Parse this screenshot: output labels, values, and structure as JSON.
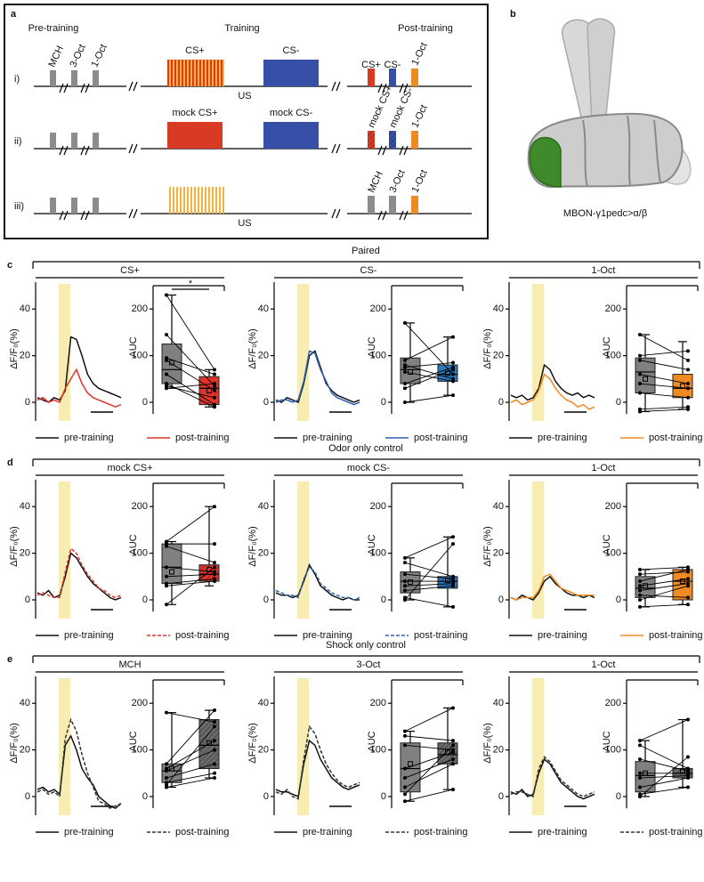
{
  "panel_a": {
    "label": "a",
    "headers": [
      "Pre-training",
      "Training",
      "Post-training"
    ],
    "rows": [
      {
        "roman": "i)",
        "pre_labels": [
          "MCH",
          "3-Oct",
          "1-Oct"
        ],
        "train_labels": [
          "CS+",
          "CS-"
        ],
        "us": "US",
        "post_labels": [
          "CS+",
          "CS-",
          "1-Oct"
        ]
      },
      {
        "roman": "ii)",
        "train_labels": [
          "mock CS+",
          "mock CS-"
        ],
        "post_labels": [
          "mock CS+",
          "mock CS-",
          "1-Oct"
        ]
      },
      {
        "roman": "iii)",
        "us": "US",
        "post_labels": [
          "MCH",
          "3-Oct",
          "1-Oct"
        ]
      }
    ]
  },
  "panel_b": {
    "label": "b",
    "caption": "MBON-γ1pedc>α/β"
  },
  "sections": [
    {
      "label": "c",
      "title": "Paired"
    },
    {
      "label": "d",
      "title": "Odor only control"
    },
    {
      "label": "e",
      "title": "Shock only control"
    }
  ],
  "chart_data": [
    {
      "type": "line",
      "title": "CS+",
      "ylabel": "ΔF/F₀(%)",
      "ylim": [
        -8,
        50
      ],
      "yticks": [
        0,
        20,
        40
      ],
      "series": [
        {
          "name": "pre-training",
          "color": "#111111",
          "values": [
            2,
            1,
            0,
            2,
            1,
            5,
            28,
            27,
            20,
            12,
            8,
            6,
            5,
            4,
            3,
            2
          ]
        },
        {
          "name": "post-training",
          "color": "#e0342b",
          "values": [
            1,
            2,
            0,
            1,
            0,
            6,
            10,
            14,
            8,
            4,
            2,
            1,
            0,
            -1,
            -2,
            -1
          ]
        }
      ]
    },
    {
      "type": "box",
      "ylabel": "AUC",
      "ylim": [
        -25,
        250
      ],
      "yticks": [
        0,
        100,
        200
      ],
      "annotation": "*",
      "series": [
        {
          "color": "#808080",
          "whisker_low": 30,
          "q1": 40,
          "median": 70,
          "q3": 125,
          "whisker_high": 230,
          "mean": 85,
          "points": [
            230,
            145,
            95,
            90,
            60,
            40,
            30,
            35
          ]
        },
        {
          "color": "#e0342b",
          "whisker_low": -10,
          "q1": -5,
          "median": 30,
          "q3": 55,
          "whisker_high": 70,
          "mean": 25,
          "points": [
            70,
            35,
            60,
            25,
            -5,
            -10,
            40,
            10
          ]
        }
      ]
    },
    {
      "type": "line",
      "title": "CS-",
      "ylabel": "ΔF/F₀(%)",
      "ylim": [
        -8,
        50
      ],
      "yticks": [
        0,
        20,
        40
      ],
      "series": [
        {
          "name": "pre-training",
          "color": "#111111",
          "values": [
            1,
            0,
            2,
            1,
            0,
            8,
            20,
            22,
            15,
            8,
            5,
            3,
            2,
            1,
            0,
            1
          ]
        },
        {
          "name": "post-training",
          "color": "#2f5fb3",
          "values": [
            0,
            1,
            1,
            0,
            1,
            9,
            22,
            21,
            14,
            9,
            4,
            2,
            1,
            0,
            -1,
            0
          ]
        }
      ]
    },
    {
      "type": "box",
      "ylabel": "AUC",
      "ylim": [
        -25,
        250
      ],
      "yticks": [
        0,
        100,
        200
      ],
      "series": [
        {
          "color": "#808080",
          "whisker_low": 0,
          "q1": 40,
          "median": 70,
          "q3": 95,
          "whisker_high": 170,
          "mean": 65,
          "points": [
            170,
            90,
            80,
            75,
            65,
            40,
            0,
            30
          ]
        },
        {
          "color": "#2a7bbf",
          "whisker_low": 15,
          "q1": 45,
          "median": 60,
          "q3": 80,
          "whisker_high": 140,
          "mean": 62,
          "points": [
            60,
            140,
            50,
            85,
            45,
            75,
            15,
            70
          ]
        }
      ]
    },
    {
      "type": "line",
      "title": "1-Oct",
      "ylabel": "ΔF/F₀(%)",
      "ylim": [
        -8,
        50
      ],
      "yticks": [
        0,
        20,
        40
      ],
      "series": [
        {
          "name": "pre-training",
          "color": "#111111",
          "values": [
            3,
            2,
            3,
            1,
            2,
            6,
            16,
            14,
            9,
            6,
            4,
            3,
            4,
            2,
            3,
            2
          ]
        },
        {
          "name": "post-training",
          "color": "#f08a24",
          "values": [
            0,
            1,
            -1,
            0,
            1,
            5,
            12,
            10,
            6,
            3,
            1,
            0,
            -2,
            -1,
            -3,
            -2
          ]
        }
      ]
    },
    {
      "type": "box",
      "ylabel": "AUC",
      "ylim": [
        -25,
        250
      ],
      "yticks": [
        0,
        100,
        200
      ],
      "series": [
        {
          "color": "#808080",
          "whisker_low": -20,
          "q1": 20,
          "median": 65,
          "q3": 95,
          "whisker_high": 145,
          "mean": 50,
          "points": [
            145,
            100,
            90,
            60,
            40,
            20,
            -15,
            -20
          ]
        },
        {
          "color": "#f08a24",
          "whisker_low": -15,
          "q1": 10,
          "median": 30,
          "q3": 60,
          "whisker_high": 130,
          "mean": 35,
          "points": [
            90,
            110,
            70,
            40,
            30,
            10,
            -10,
            -15
          ]
        }
      ]
    },
    {
      "type": "line",
      "title": "mock CS+",
      "ylabel": "ΔF/F₀(%)",
      "ylim": [
        -8,
        50
      ],
      "yticks": [
        0,
        20,
        40
      ],
      "series": [
        {
          "name": "pre-training",
          "color": "#111111",
          "values": [
            3,
            2,
            4,
            1,
            2,
            10,
            20,
            18,
            14,
            10,
            7,
            5,
            3,
            1,
            0,
            1
          ]
        },
        {
          "name": "post-training",
          "color": "#e0342b",
          "dash": true,
          "values": [
            2,
            3,
            2,
            1,
            1,
            12,
            22,
            20,
            15,
            11,
            8,
            5,
            4,
            2,
            1,
            2
          ]
        }
      ]
    },
    {
      "type": "box",
      "ylabel": "AUC",
      "ylim": [
        -25,
        250
      ],
      "yticks": [
        0,
        100,
        200
      ],
      "series": [
        {
          "color": "#808080",
          "whisker_low": -10,
          "q1": 35,
          "median": 70,
          "q3": 120,
          "whisker_high": 125,
          "mean": 60,
          "points": [
            125,
            120,
            115,
            70,
            50,
            35,
            30,
            -10
          ]
        },
        {
          "color": "#e0342b",
          "hatch": true,
          "whisker_low": 30,
          "q1": 40,
          "median": 55,
          "q3": 75,
          "whisker_high": 200,
          "mean": 65,
          "points": [
            200,
            120,
            80,
            60,
            55,
            45,
            40,
            70
          ]
        }
      ]
    },
    {
      "type": "line",
      "title": "mock CS-",
      "ylabel": "ΔF/F₀(%)",
      "ylim": [
        -8,
        50
      ],
      "yticks": [
        0,
        20,
        40
      ],
      "series": [
        {
          "name": "pre-training",
          "color": "#111111",
          "values": [
            3,
            2,
            2,
            1,
            2,
            8,
            15,
            11,
            6,
            4,
            2,
            1,
            0,
            1,
            0,
            0
          ]
        },
        {
          "name": "post-training",
          "color": "#2f5fb3",
          "dash": true,
          "values": [
            4,
            3,
            2,
            2,
            1,
            9,
            14,
            12,
            7,
            5,
            3,
            2,
            1,
            1,
            0,
            1
          ]
        }
      ]
    },
    {
      "type": "box",
      "ylabel": "AUC",
      "ylim": [
        -25,
        250
      ],
      "yticks": [
        0,
        100,
        200
      ],
      "series": [
        {
          "color": "#808080",
          "whisker_low": 0,
          "q1": 15,
          "median": 40,
          "q3": 60,
          "whisker_high": 90,
          "mean": 38,
          "points": [
            90,
            80,
            55,
            40,
            30,
            20,
            5,
            0
          ]
        },
        {
          "color": "#2a7bbf",
          "hatch": true,
          "whisker_low": -15,
          "q1": 25,
          "median": 40,
          "q3": 50,
          "whisker_high": 135,
          "mean": 42,
          "points": [
            135,
            50,
            45,
            40,
            35,
            30,
            -15,
            120
          ]
        }
      ]
    },
    {
      "type": "line",
      "title": "1-Oct",
      "ylabel": "ΔF/F₀(%)",
      "ylim": [
        -8,
        50
      ],
      "yticks": [
        0,
        20,
        40
      ],
      "series": [
        {
          "name": "pre-training",
          "color": "#111111",
          "values": [
            1,
            0,
            2,
            1,
            0,
            3,
            8,
            10,
            7,
            5,
            3,
            2,
            2,
            1,
            2,
            1
          ]
        },
        {
          "name": "post-training",
          "color": "#f08a24",
          "values": [
            1,
            0,
            1,
            1,
            1,
            4,
            10,
            11,
            8,
            5,
            4,
            3,
            2,
            2,
            2,
            2
          ]
        }
      ]
    },
    {
      "type": "box",
      "ylabel": "AUC",
      "ylim": [
        -25,
        250
      ],
      "yticks": [
        0,
        100,
        200
      ],
      "series": [
        {
          "color": "#808080",
          "whisker_low": -15,
          "q1": 5,
          "median": 25,
          "q3": 50,
          "whisker_high": 65,
          "mean": 30,
          "points": [
            65,
            55,
            40,
            30,
            20,
            10,
            -15,
            0
          ]
        },
        {
          "color": "#f08a24",
          "whisker_low": -10,
          "q1": 0,
          "median": 40,
          "q3": 65,
          "whisker_high": 70,
          "mean": 40,
          "points": [
            70,
            60,
            65,
            45,
            35,
            5,
            -10,
            30
          ]
        }
      ]
    },
    {
      "type": "line",
      "title": "MCH",
      "ylabel": "ΔF/F₀(%)",
      "ylim": [
        -8,
        50
      ],
      "yticks": [
        0,
        20,
        40
      ],
      "series": [
        {
          "name": "pre-training",
          "color": "#111111",
          "values": [
            3,
            4,
            2,
            3,
            1,
            22,
            26,
            20,
            12,
            8,
            5,
            0,
            -2,
            -4,
            -5,
            -3
          ]
        },
        {
          "name": "post-training",
          "color": "#333333",
          "dash": true,
          "values": [
            2,
            3,
            1,
            2,
            0,
            25,
            33,
            28,
            18,
            10,
            4,
            -2,
            -3,
            -5,
            -4,
            -3
          ]
        }
      ]
    },
    {
      "type": "box",
      "ylabel": "AUC",
      "ylim": [
        -25,
        250
      ],
      "yticks": [
        0,
        100,
        200
      ],
      "series": [
        {
          "color": "#808080",
          "whisker_low": 20,
          "q1": 30,
          "median": 55,
          "q3": 70,
          "whisker_high": 180,
          "mean": 60,
          "points": [
            180,
            70,
            60,
            55,
            40,
            30,
            20,
            25
          ]
        },
        {
          "color": "#6a6a6a",
          "hatch": true,
          "whisker_low": 40,
          "q1": 60,
          "median": 110,
          "q3": 165,
          "whisker_high": 185,
          "mean": 115,
          "points": [
            160,
            185,
            120,
            100,
            70,
            50,
            40,
            150
          ]
        }
      ]
    },
    {
      "type": "line",
      "title": "3-Oct",
      "ylabel": "ΔF/F₀(%)",
      "ylim": [
        -8,
        50
      ],
      "yticks": [
        0,
        20,
        40
      ],
      "series": [
        {
          "name": "pre-training",
          "color": "#111111",
          "values": [
            3,
            2,
            2,
            1,
            0,
            14,
            24,
            22,
            16,
            12,
            8,
            6,
            4,
            3,
            4,
            5
          ]
        },
        {
          "name": "post-training",
          "color": "#333333",
          "dash": true,
          "values": [
            2,
            1,
            3,
            0,
            -1,
            16,
            30,
            27,
            20,
            14,
            10,
            7,
            5,
            4,
            5,
            6
          ]
        }
      ]
    },
    {
      "type": "box",
      "ylabel": "AUC",
      "ylim": [
        -25,
        250
      ],
      "yticks": [
        0,
        100,
        200
      ],
      "series": [
        {
          "color": "#808080",
          "whisker_low": -10,
          "q1": 10,
          "median": 60,
          "q3": 115,
          "whisker_high": 140,
          "mean": 70,
          "points": [
            140,
            130,
            110,
            60,
            40,
            20,
            -10,
            5
          ]
        },
        {
          "color": "#6a6a6a",
          "hatch": true,
          "whisker_low": 15,
          "q1": 70,
          "median": 90,
          "q3": 115,
          "whisker_high": 190,
          "mean": 95,
          "points": [
            190,
            120,
            100,
            95,
            80,
            70,
            15,
            110
          ]
        }
      ]
    },
    {
      "type": "line",
      "title": "1-Oct",
      "ylabel": "ΔF/F₀(%)",
      "ylim": [
        -8,
        50
      ],
      "yticks": [
        0,
        20,
        40
      ],
      "series": [
        {
          "name": "pre-training",
          "color": "#111111",
          "values": [
            2,
            1,
            3,
            0,
            1,
            10,
            16,
            14,
            10,
            6,
            4,
            2,
            0,
            -1,
            0,
            1
          ]
        },
        {
          "name": "post-training",
          "color": "#333333",
          "dash": true,
          "values": [
            1,
            2,
            2,
            1,
            0,
            12,
            17,
            15,
            11,
            7,
            5,
            3,
            1,
            0,
            1,
            2
          ]
        }
      ]
    },
    {
      "type": "box",
      "ylabel": "AUC",
      "ylim": [
        -25,
        250
      ],
      "yticks": [
        0,
        100,
        200
      ],
      "series": [
        {
          "color": "#808080",
          "whisker_low": 0,
          "q1": 10,
          "median": 45,
          "q3": 75,
          "whisker_high": 120,
          "mean": 50,
          "points": [
            120,
            110,
            80,
            50,
            40,
            20,
            5,
            0
          ]
        },
        {
          "color": "#6a6a6a",
          "hatch": true,
          "whisker_low": 20,
          "q1": 40,
          "median": 50,
          "q3": 60,
          "whisker_high": 165,
          "mean": 55,
          "points": [
            165,
            60,
            55,
            50,
            45,
            40,
            20,
            85
          ]
        }
      ]
    }
  ]
}
